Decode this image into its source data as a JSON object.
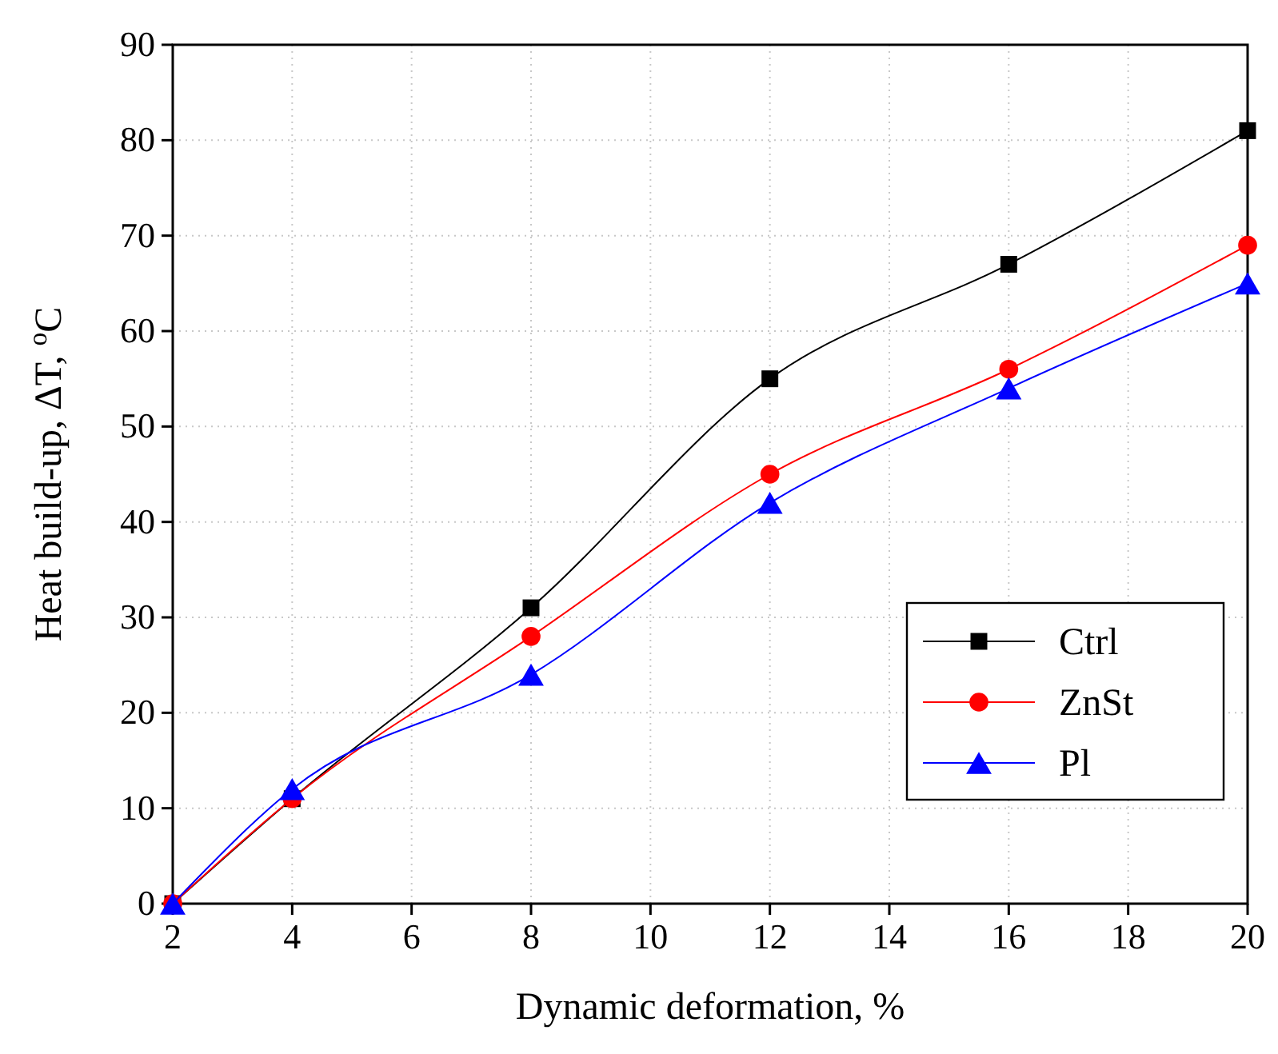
{
  "chart_data": {
    "type": "line",
    "xlabel": "Dynamic deformation, %",
    "ylabel": "Heat build-up, ΔT, $^{o}$C",
    "x": [
      2,
      4,
      8,
      12,
      16,
      20
    ],
    "xlim": [
      2,
      20
    ],
    "xticks": [
      2,
      4,
      6,
      8,
      10,
      12,
      14,
      16,
      18,
      20
    ],
    "ylim": [
      0,
      90
    ],
    "yticks": [
      0,
      10,
      20,
      30,
      40,
      50,
      60,
      70,
      80,
      90
    ],
    "grid": true,
    "legend": "bottom right",
    "line_style": "solid",
    "series": [
      {
        "name": "Ctrl",
        "color": "#000000",
        "marker": "square",
        "values": [
          0,
          11,
          31,
          55,
          67,
          81
        ]
      },
      {
        "name": "ZnSt",
        "color": "#ff0000",
        "marker": "circle",
        "values": [
          0,
          11,
          28,
          45,
          56,
          69
        ]
      },
      {
        "name": "Pl",
        "color": "#0000ff",
        "marker": "triangle",
        "values": [
          0,
          12,
          24,
          42,
          54,
          65
        ]
      }
    ]
  }
}
